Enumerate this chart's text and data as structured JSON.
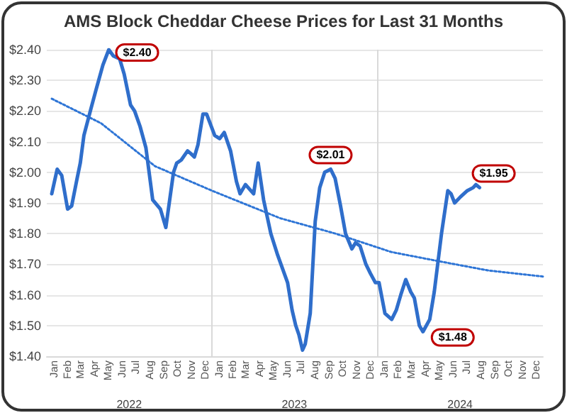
{
  "chart_data": {
    "type": "line",
    "title": "AMS Block Cheddar Cheese Prices for Last 31 Months",
    "xlim": [
      "2022-01-01",
      "2025-01-01"
    ],
    "xticks": [
      {
        "value": "2022-01-16",
        "label": "Jan"
      },
      {
        "value": "2022-02-15",
        "label": "Feb"
      },
      {
        "value": "2022-03-16",
        "label": "Mar"
      },
      {
        "value": "2022-04-16",
        "label": "Apr"
      },
      {
        "value": "2022-05-16",
        "label": "May"
      },
      {
        "value": "2022-06-16",
        "label": "Jun"
      },
      {
        "value": "2022-07-16",
        "label": "Jul"
      },
      {
        "value": "2022-08-16",
        "label": "Aug"
      },
      {
        "value": "2022-09-16",
        "label": "Sep"
      },
      {
        "value": "2022-10-16",
        "label": "Oct"
      },
      {
        "value": "2022-11-16",
        "label": "Nov"
      },
      {
        "value": "2022-12-16",
        "label": "Dec"
      },
      {
        "value": "2023-01-16",
        "label": "Jan"
      },
      {
        "value": "2023-02-15",
        "label": "Feb"
      },
      {
        "value": "2023-03-16",
        "label": "Mar"
      },
      {
        "value": "2023-04-16",
        "label": "Apr"
      },
      {
        "value": "2023-05-16",
        "label": "May"
      },
      {
        "value": "2023-06-16",
        "label": "Jun"
      },
      {
        "value": "2023-07-16",
        "label": "Jul"
      },
      {
        "value": "2023-08-16",
        "label": "Aug"
      },
      {
        "value": "2023-09-16",
        "label": "Sep"
      },
      {
        "value": "2023-10-16",
        "label": "Oct"
      },
      {
        "value": "2023-11-16",
        "label": "Nov"
      },
      {
        "value": "2023-12-16",
        "label": "Dec"
      },
      {
        "value": "2024-01-16",
        "label": "Jan"
      },
      {
        "value": "2024-02-15",
        "label": "Feb"
      },
      {
        "value": "2024-03-16",
        "label": "Mar"
      },
      {
        "value": "2024-04-16",
        "label": "Apr"
      },
      {
        "value": "2024-05-16",
        "label": "May"
      },
      {
        "value": "2024-06-16",
        "label": "Jun"
      },
      {
        "value": "2024-07-16",
        "label": "Jul"
      },
      {
        "value": "2024-08-16",
        "label": "Aug"
      },
      {
        "value": "2024-09-16",
        "label": "Sep"
      },
      {
        "value": "2024-10-16",
        "label": "Oct"
      },
      {
        "value": "2024-11-16",
        "label": "Nov"
      },
      {
        "value": "2024-12-16",
        "label": "Dec"
      }
    ],
    "x2lim": [
      "2022-01-01",
      "2025-01-01"
    ],
    "x2ticks": [
      {
        "value": "2022-07-02",
        "label": "2022"
      },
      {
        "value": "2023-07-02",
        "label": "2023"
      },
      {
        "value": "2024-07-02",
        "label": "2024"
      }
    ],
    "ylim": [
      1.4,
      2.4
    ],
    "yticks": [
      {
        "value": 1.4,
        "label": "$1.40"
      },
      {
        "value": 1.5,
        "label": "$1.50"
      },
      {
        "value": 1.6,
        "label": "$1.60"
      },
      {
        "value": 1.7,
        "label": "$1.70"
      },
      {
        "value": 1.8,
        "label": "$1.80"
      },
      {
        "value": 1.9,
        "label": "$1.90"
      },
      {
        "value": 2.0,
        "label": "$2.00"
      },
      {
        "value": 2.1,
        "label": "$2.10"
      },
      {
        "value": 2.2,
        "label": "$2.20"
      },
      {
        "value": 2.3,
        "label": "$2.30"
      },
      {
        "value": 2.4,
        "label": "$2.40"
      }
    ],
    "grid": "y",
    "marker": "none",
    "line_style": "solid",
    "ref_lines": [
      {
        "axis": "x",
        "value": "2023-01-01",
        "color": "#d9d9d9"
      },
      {
        "axis": "x",
        "value": "2024-01-01",
        "color": "#d9d9d9"
      }
    ],
    "series": [
      {
        "color": "#2f6ecb",
        "x": [
          "2022-01-12",
          "2022-01-24",
          "2022-02-03",
          "2022-02-16",
          "2022-02-25",
          "2022-03-09",
          "2022-03-16",
          "2022-03-24",
          "2022-04-09",
          "2022-04-20",
          "2022-05-05",
          "2022-05-18",
          "2022-05-28",
          "2022-06-11",
          "2022-06-21",
          "2022-07-05",
          "2022-07-14",
          "2022-07-26",
          "2022-08-08",
          "2022-08-23",
          "2022-09-09",
          "2022-09-21",
          "2022-10-08",
          "2022-10-15",
          "2022-10-25",
          "2022-11-08",
          "2022-11-16",
          "2022-11-23",
          "2022-12-01",
          "2022-12-12",
          "2022-12-20",
          "2023-01-07",
          "2023-01-18",
          "2023-01-28",
          "2023-02-11",
          "2023-02-24",
          "2023-03-04",
          "2023-03-16",
          "2023-04-03",
          "2023-04-13",
          "2023-04-25",
          "2023-05-11",
          "2023-05-26",
          "2023-06-17",
          "2023-06-27",
          "2023-07-05",
          "2023-07-12",
          "2023-07-20",
          "2023-07-26",
          "2023-08-06",
          "2023-08-17",
          "2023-08-27",
          "2023-09-07",
          "2023-09-20",
          "2023-09-30",
          "2023-10-12",
          "2023-10-23",
          "2023-11-06",
          "2023-11-14",
          "2023-11-24",
          "2023-12-07",
          "2023-12-17",
          "2023-12-28",
          "2024-01-05",
          "2024-01-18",
          "2024-02-02",
          "2024-02-12",
          "2024-02-22",
          "2024-03-04",
          "2024-03-15",
          "2024-03-23",
          "2024-04-03",
          "2024-04-11",
          "2024-04-26",
          "2024-05-06",
          "2024-05-22",
          "2024-06-05",
          "2024-06-12",
          "2024-06-20",
          "2024-07-03",
          "2024-07-18",
          "2024-07-31",
          "2024-08-06",
          "2024-08-14"
        ],
        "values": [
          1.93,
          2.01,
          1.99,
          1.88,
          1.89,
          1.98,
          2.03,
          2.12,
          2.21,
          2.27,
          2.35,
          2.4,
          2.38,
          2.37,
          2.32,
          2.22,
          2.2,
          2.15,
          2.08,
          1.91,
          1.88,
          1.82,
          2.0,
          2.03,
          2.04,
          2.07,
          2.06,
          2.05,
          2.09,
          2.19,
          2.19,
          2.12,
          2.11,
          2.13,
          2.07,
          1.97,
          1.93,
          1.96,
          1.93,
          2.03,
          1.91,
          1.8,
          1.73,
          1.64,
          1.55,
          1.5,
          1.47,
          1.42,
          1.44,
          1.54,
          1.84,
          1.95,
          2.0,
          2.01,
          1.98,
          1.89,
          1.8,
          1.75,
          1.77,
          1.76,
          1.7,
          1.67,
          1.64,
          1.64,
          1.54,
          1.52,
          1.55,
          1.6,
          1.65,
          1.61,
          1.59,
          1.5,
          1.48,
          1.52,
          1.61,
          1.8,
          1.94,
          1.93,
          1.9,
          1.92,
          1.94,
          1.95,
          1.96,
          1.95
        ],
        "value_labels": [
          null,
          null,
          null,
          null,
          null,
          null,
          null,
          null,
          null,
          null,
          null,
          "$2.40",
          null,
          null,
          null,
          null,
          null,
          null,
          null,
          null,
          null,
          null,
          null,
          null,
          null,
          null,
          null,
          null,
          null,
          null,
          null,
          null,
          null,
          null,
          null,
          null,
          null,
          null,
          null,
          null,
          null,
          null,
          null,
          null,
          null,
          null,
          null,
          null,
          null,
          null,
          null,
          null,
          null,
          "$2.01",
          null,
          null,
          null,
          null,
          null,
          null,
          null,
          null,
          null,
          null,
          null,
          null,
          null,
          null,
          null,
          null,
          null,
          null,
          "$1.48",
          null,
          null,
          null,
          null,
          null,
          null,
          null,
          null,
          null,
          null,
          "$1.95"
        ]
      },
      {
        "color": "#2e75d6",
        "line_style": "dotted",
        "x": [
          "2022-01-12",
          "2022-05-01",
          "2022-08-28",
          "2023-01-01",
          "2023-06-01",
          "2023-10-01",
          "2024-02-01",
          "2024-05-16",
          "2024-09-01",
          "2025-01-01"
        ],
        "values": [
          2.24,
          2.16,
          2.02,
          1.94,
          1.85,
          1.8,
          1.74,
          1.71,
          1.68,
          1.66
        ]
      }
    ]
  }
}
